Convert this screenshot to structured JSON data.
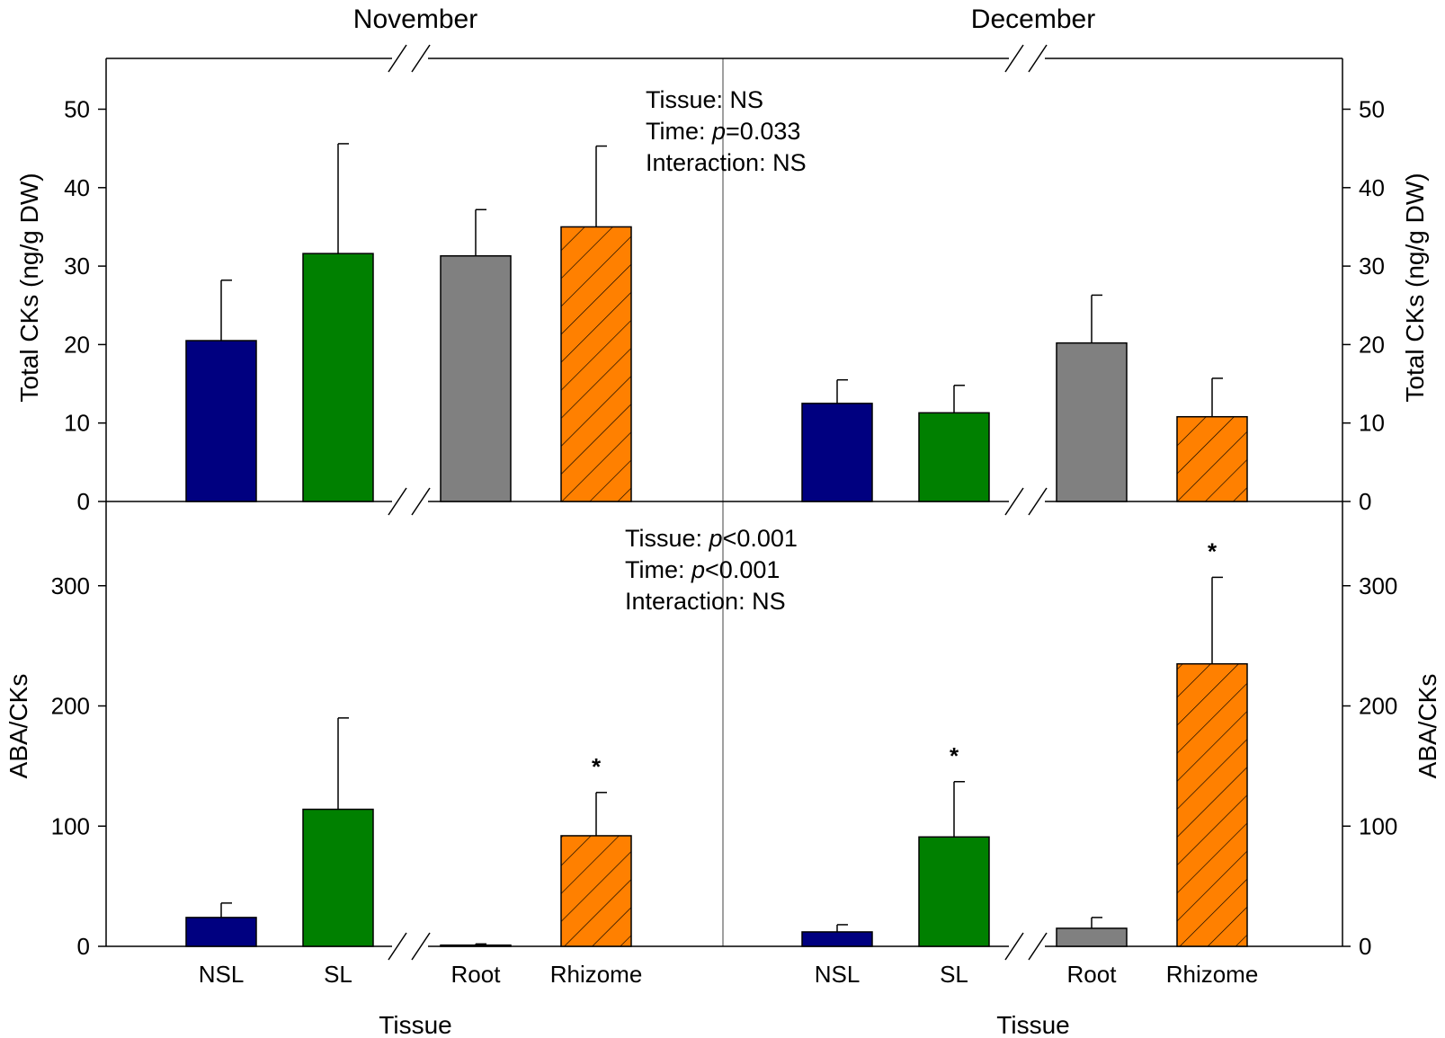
{
  "figure": {
    "months": [
      "November",
      "December"
    ],
    "xlabel": "Tissue"
  },
  "colors": {
    "NSL": "#000080",
    "SL": "#008000",
    "Root": "#808080",
    "Rhizome": "#FF8000",
    "axis": "#000000",
    "divider": "#808080"
  },
  "chart_data": [
    {
      "type": "bar",
      "panel": "top",
      "title": "",
      "ylabel": "Total CKs (ng/g DW)",
      "ylim": [
        0,
        55
      ],
      "yticks": [
        0,
        10,
        20,
        30,
        40,
        50
      ],
      "categories": [
        "NSL",
        "SL",
        "Root",
        "Rhizome"
      ],
      "groups": [
        {
          "name": "November",
          "values": [
            20.5,
            31.6,
            31.3,
            35.0
          ],
          "errors": [
            7.7,
            14.0,
            5.9,
            10.3
          ],
          "stars": [
            "",
            "",
            "",
            ""
          ]
        },
        {
          "name": "December",
          "values": [
            12.5,
            11.3,
            20.2,
            10.8
          ],
          "errors": [
            3.0,
            3.5,
            6.1,
            4.9
          ],
          "stars": [
            "",
            "",
            "",
            ""
          ]
        }
      ],
      "annotation": {
        "tissue": "Tissue: NS",
        "time_prefix": "Time: ",
        "time_p": "p",
        "time_value": "=0.033",
        "interaction": "Interaction: NS"
      }
    },
    {
      "type": "bar",
      "panel": "bottom",
      "title": "",
      "ylabel": "ABA/CKs",
      "ylim": [
        0,
        360
      ],
      "yticks": [
        0,
        100,
        200,
        300
      ],
      "categories": [
        "NSL",
        "SL",
        "Root",
        "Rhizome"
      ],
      "groups": [
        {
          "name": "November",
          "values": [
            24,
            114,
            1,
            92
          ],
          "errors": [
            12,
            76,
            1,
            36
          ],
          "stars": [
            "",
            "",
            "",
            "*"
          ]
        },
        {
          "name": "December",
          "values": [
            12,
            91,
            15,
            235
          ],
          "errors": [
            6,
            46,
            9,
            72
          ],
          "stars": [
            "",
            "*",
            "",
            "*"
          ]
        }
      ],
      "annotation": {
        "tissue_prefix": "Tissue: ",
        "tissue_p": "p",
        "tissue_value": "<0.001",
        "time_prefix": "Time: ",
        "time_p": "p",
        "time_value": "<0.001",
        "interaction": "Interaction: NS"
      }
    }
  ]
}
